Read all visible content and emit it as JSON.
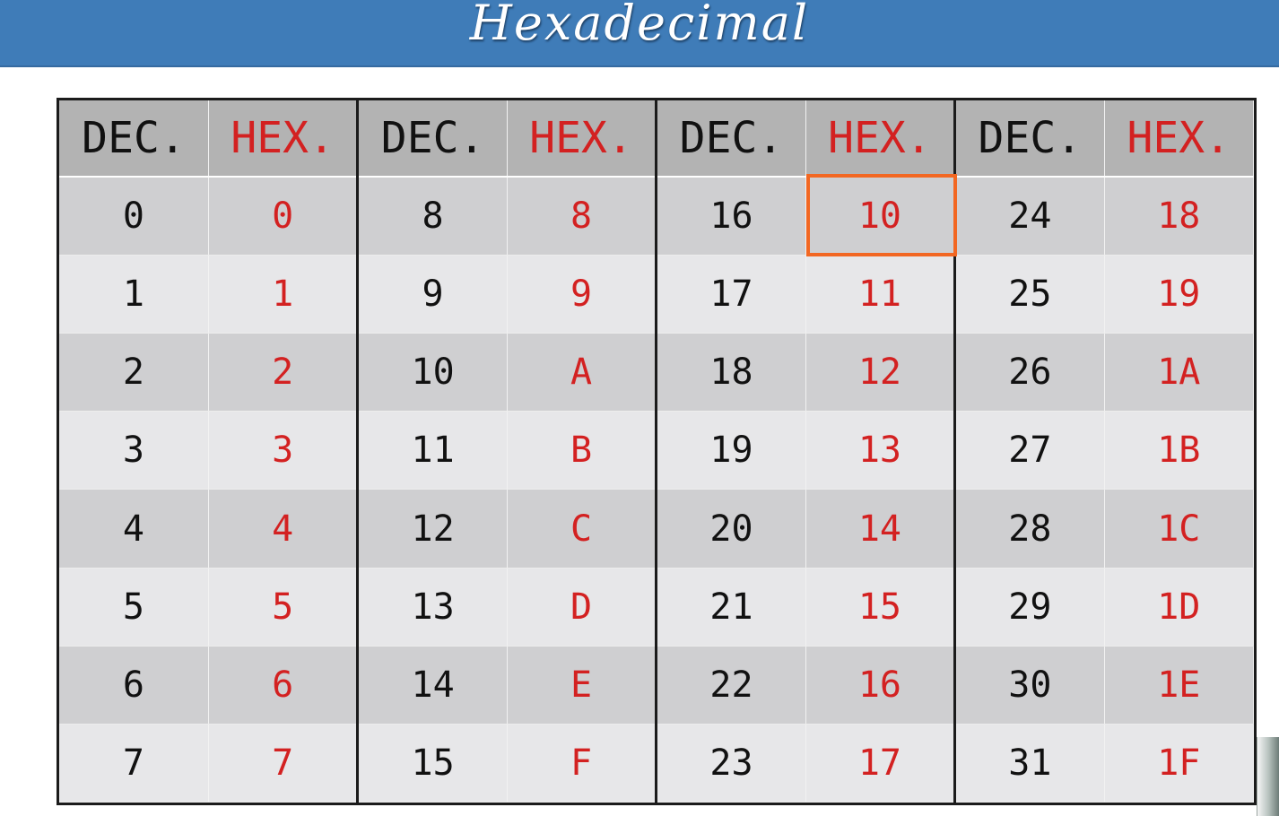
{
  "title": "Hexadecimal",
  "colors": {
    "banner": "#3f7cb8",
    "dec_text": "#111111",
    "hex_text": "#d32121",
    "highlight": "#f26722",
    "row_dark": "#cfcfd1",
    "row_light": "#e7e7e9",
    "header_bg": "#b3b3b3"
  },
  "headers": [
    "DEC.",
    "HEX.",
    "DEC.",
    "HEX.",
    "DEC.",
    "HEX.",
    "DEC.",
    "HEX."
  ],
  "rows": [
    [
      "0",
      "0",
      "8",
      "8",
      "16",
      "10",
      "24",
      "18"
    ],
    [
      "1",
      "1",
      "9",
      "9",
      "17",
      "11",
      "25",
      "19"
    ],
    [
      "2",
      "2",
      "10",
      "A",
      "18",
      "12",
      "26",
      "1A"
    ],
    [
      "3",
      "3",
      "11",
      "B",
      "19",
      "13",
      "27",
      "1B"
    ],
    [
      "4",
      "4",
      "12",
      "C",
      "20",
      "14",
      "28",
      "1C"
    ],
    [
      "5",
      "5",
      "13",
      "D",
      "21",
      "15",
      "29",
      "1D"
    ],
    [
      "6",
      "6",
      "14",
      "E",
      "22",
      "16",
      "30",
      "1E"
    ],
    [
      "7",
      "7",
      "15",
      "F",
      "23",
      "17",
      "31",
      "1F"
    ]
  ],
  "highlighted_cell": {
    "row": 0,
    "col": 5,
    "value": "10"
  }
}
